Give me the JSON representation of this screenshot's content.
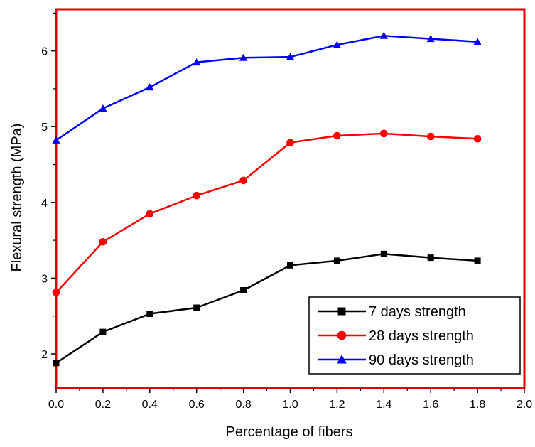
{
  "chart_data": {
    "type": "line",
    "xlabel": "Percentage of fibers",
    "ylabel": "Flexural strength (MPa)",
    "xlim": [
      0.0,
      2.0
    ],
    "ylim": [
      1.55,
      6.55
    ],
    "xticks": [
      "0.0",
      "0.2",
      "0.4",
      "0.6",
      "0.8",
      "1.0",
      "1.2",
      "1.4",
      "1.6",
      "1.8",
      "2.0"
    ],
    "xtick_values": [
      0.0,
      0.2,
      0.4,
      0.6,
      0.8,
      1.0,
      1.2,
      1.4,
      1.6,
      1.8,
      2.0
    ],
    "yticks": [
      "2",
      "3",
      "4",
      "5",
      "6"
    ],
    "ytick_values": [
      2,
      3,
      4,
      5,
      6
    ],
    "x": [
      0.0,
      0.2,
      0.4,
      0.6,
      0.8,
      1.0,
      1.2,
      1.4,
      1.6,
      1.8
    ],
    "series": [
      {
        "name": "7 days strength",
        "color": "#000000",
        "marker": "square",
        "values": [
          1.88,
          2.29,
          2.53,
          2.61,
          2.84,
          3.17,
          3.23,
          3.32,
          3.27,
          3.23
        ]
      },
      {
        "name": "28 days strength",
        "color": "#ff0000",
        "marker": "circle",
        "values": [
          2.81,
          3.48,
          3.85,
          4.09,
          4.29,
          4.79,
          4.88,
          4.91,
          4.87,
          4.84
        ]
      },
      {
        "name": "90 days strength",
        "color": "#0000ff",
        "marker": "triangle",
        "values": [
          4.82,
          5.24,
          5.52,
          5.85,
          5.91,
          5.92,
          6.08,
          6.2,
          6.16,
          6.12
        ]
      }
    ],
    "frame_color": "#e00000",
    "legend_position": "bottom-right",
    "grid": false
  }
}
